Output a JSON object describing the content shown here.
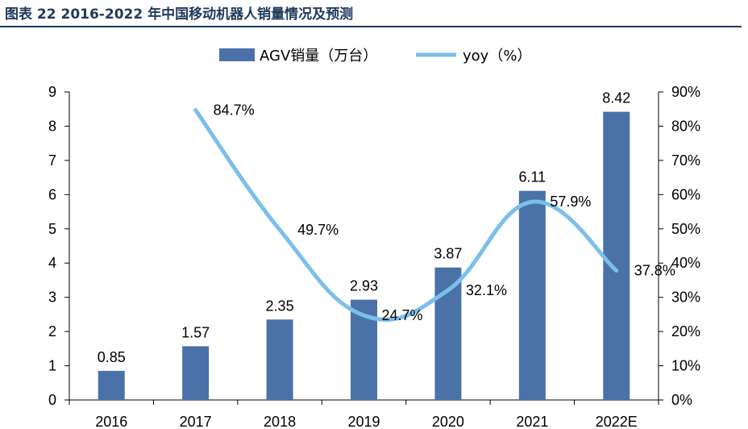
{
  "figure": {
    "title": "图表 22 2016-2022 年中国移动机器人销量情况及预测"
  },
  "colors": {
    "bar": "#4a72a9",
    "line": "#7bbfea",
    "title": "#1f3a5a"
  },
  "chart_data": {
    "type": "bar+line",
    "categories": [
      "2016",
      "2017",
      "2018",
      "2019",
      "2020",
      "2021",
      "2022E"
    ],
    "series": [
      {
        "name": "AGV销量（万台）",
        "type": "bar",
        "axis": "left",
        "values": [
          0.85,
          1.57,
          2.35,
          2.93,
          3.87,
          6.11,
          8.42
        ],
        "labels": [
          "0.85",
          "1.57",
          "2.35",
          "2.93",
          "3.87",
          "6.11",
          "8.42"
        ]
      },
      {
        "name": "yoy（%）",
        "type": "line",
        "axis": "right",
        "values": [
          null,
          84.7,
          49.7,
          24.7,
          32.1,
          57.9,
          37.8
        ],
        "labels": [
          "",
          "84.7%",
          "49.7%",
          "24.7%",
          "32.1%",
          "57.9%",
          "37.8%"
        ]
      }
    ],
    "y_left": {
      "range": [
        0,
        9
      ],
      "ticks": [
        "0",
        "1",
        "2",
        "3",
        "4",
        "5",
        "6",
        "7",
        "8",
        "9"
      ]
    },
    "y_right": {
      "range": [
        0,
        90
      ],
      "ticks": [
        "0%",
        "10%",
        "20%",
        "30%",
        "40%",
        "50%",
        "60%",
        "70%",
        "80%",
        "90%"
      ]
    },
    "grid": false,
    "legend": "top-center"
  }
}
